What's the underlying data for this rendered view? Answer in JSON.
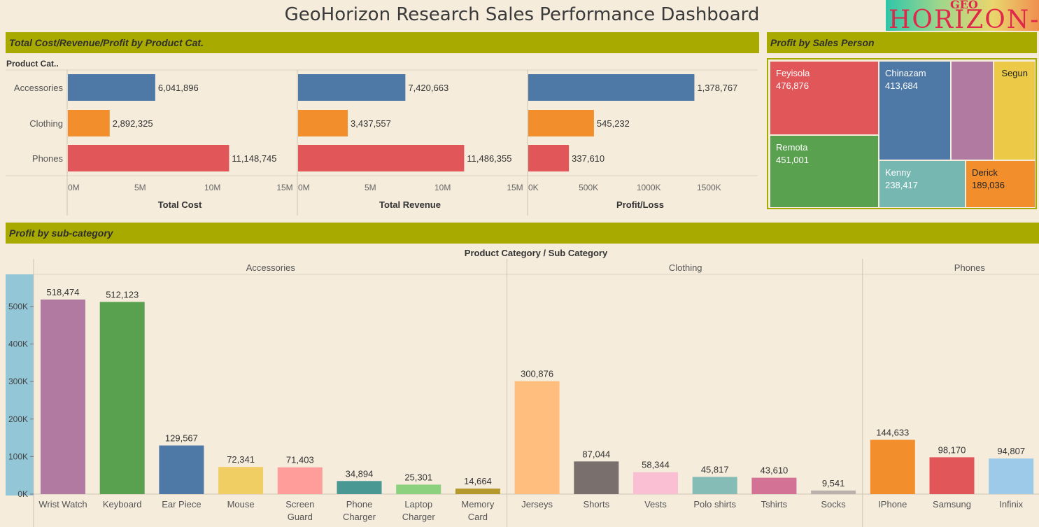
{
  "title": "GeoHorizon Research Sales Performance Dashboard",
  "logo": {
    "small": "GEO",
    "main": "HORIZON-R"
  },
  "sections": {
    "category_panel": "Total Cost/Revenue/Profit by Product Cat.",
    "salesperson_panel": "Profit by Sales Person",
    "subcategory_panel": "Profit by sub-category"
  },
  "category_row_header": "Product Cat..",
  "colors": {
    "accessories": "#4e79a7",
    "clothing": "#f28e2b",
    "phones": "#e15759",
    "band": "#a9aa00",
    "axis_band": "#93c6d6"
  },
  "chart_data": [
    {
      "type": "bar",
      "orientation": "horizontal",
      "categories": [
        "Accessories",
        "Clothing",
        "Phones"
      ],
      "series": [
        {
          "name": "Total Cost",
          "values": [
            6041896,
            2892325,
            11148745
          ],
          "value_labels": [
            "6,041,896",
            "2,892,325",
            "11,148,745"
          ],
          "xlim": [
            0,
            15000000
          ],
          "ticks": [
            "0M",
            "5M",
            "10M",
            "15M"
          ],
          "tick_values": [
            0,
            5000000,
            10000000,
            15000000
          ]
        },
        {
          "name": "Total Revenue",
          "values": [
            7420663,
            3437557,
            11486355
          ],
          "value_labels": [
            "7,420,663",
            "3,437,557",
            "11,486,355"
          ],
          "xlim": [
            0,
            15000000
          ],
          "ticks": [
            "0M",
            "5M",
            "10M",
            "15M"
          ],
          "tick_values": [
            0,
            5000000,
            10000000,
            15000000
          ]
        },
        {
          "name": "Profit/Loss",
          "values": [
            1378767,
            545232,
            337610
          ],
          "value_labels": [
            "1,378,767",
            "545,232",
            "337,610"
          ],
          "xlim": [
            0,
            1800000
          ],
          "ticks": [
            "0K",
            "500K",
            "1000K",
            "1500K"
          ],
          "tick_values": [
            0,
            500000,
            1000000,
            1500000
          ]
        }
      ],
      "grid": false
    },
    {
      "type": "treemap",
      "items": [
        {
          "name": "Feyisola",
          "value": 476876,
          "label": "476,876",
          "color": "#e15759"
        },
        {
          "name": "Remota",
          "value": 451001,
          "label": "451,001",
          "color": "#59a14f"
        },
        {
          "name": "Chinazam",
          "value": 413684,
          "label": "413,684",
          "color": "#4e79a7"
        },
        {
          "name": "",
          "value": null,
          "label": "",
          "color": "#b07aa1"
        },
        {
          "name": "Segun",
          "value": null,
          "label": "",
          "color": "#edc948"
        },
        {
          "name": "Kenny",
          "value": 238417,
          "label": "238,417",
          "color": "#76b7b2"
        },
        {
          "name": "Derick",
          "value": 189036,
          "label": "189,036",
          "color": "#f28e2b"
        }
      ]
    },
    {
      "type": "bar",
      "title": "Product Category / Sub Category",
      "groups": [
        {
          "name": "Accessories",
          "items": [
            {
              "label": [
                "Wrist Watch"
              ],
              "value": 518474,
              "value_label": "518,474",
              "color": "#b07aa1"
            },
            {
              "label": [
                "Keyboard"
              ],
              "value": 512123,
              "value_label": "512,123",
              "color": "#59a14f"
            },
            {
              "label": [
                "Ear Piece"
              ],
              "value": 129567,
              "value_label": "129,567",
              "color": "#4e79a7"
            },
            {
              "label": [
                "Mouse"
              ],
              "value": 72341,
              "value_label": "72,341",
              "color": "#f1ce63"
            },
            {
              "label": [
                "Screen",
                "Guard"
              ],
              "value": 71403,
              "value_label": "71,403",
              "color": "#ff9d9a"
            },
            {
              "label": [
                "Phone",
                "Charger"
              ],
              "value": 34894,
              "value_label": "34,894",
              "color": "#499894"
            },
            {
              "label": [
                "Laptop",
                "Charger"
              ],
              "value": 25301,
              "value_label": "25,301",
              "color": "#8cd17d"
            },
            {
              "label": [
                "Memory",
                "Card"
              ],
              "value": 14664,
              "value_label": "14,664",
              "color": "#b6992d"
            }
          ]
        },
        {
          "name": "Clothing",
          "items": [
            {
              "label": [
                "Jerseys"
              ],
              "value": 300876,
              "value_label": "300,876",
              "color": "#ffbe7d"
            },
            {
              "label": [
                "Shorts"
              ],
              "value": 87044,
              "value_label": "87,044",
              "color": "#79706e"
            },
            {
              "label": [
                "Vests"
              ],
              "value": 58344,
              "value_label": "58,344",
              "color": "#fabfd2"
            },
            {
              "label": [
                "Polo shirts"
              ],
              "value": 45817,
              "value_label": "45,817",
              "color": "#86bcb6"
            },
            {
              "label": [
                "Tshirts"
              ],
              "value": 43610,
              "value_label": "43,610",
              "color": "#d37295"
            },
            {
              "label": [
                "Socks"
              ],
              "value": 9541,
              "value_label": "9,541",
              "color": "#bab0ac"
            }
          ]
        },
        {
          "name": "Phones",
          "items": [
            {
              "label": [
                "IPhone"
              ],
              "value": 144633,
              "value_label": "144,633",
              "color": "#f28e2b"
            },
            {
              "label": [
                "Samsung"
              ],
              "value": 98170,
              "value_label": "98,170",
              "color": "#e15759"
            },
            {
              "label": [
                "Infinix"
              ],
              "value": 94807,
              "value_label": "94,807",
              "color": "#9ecae9"
            }
          ]
        }
      ],
      "ylim": [
        0,
        580000
      ],
      "yticks": [
        "0K",
        "100K",
        "200K",
        "300K",
        "400K",
        "500K"
      ],
      "ytick_values": [
        0,
        100000,
        200000,
        300000,
        400000,
        500000
      ]
    }
  ]
}
